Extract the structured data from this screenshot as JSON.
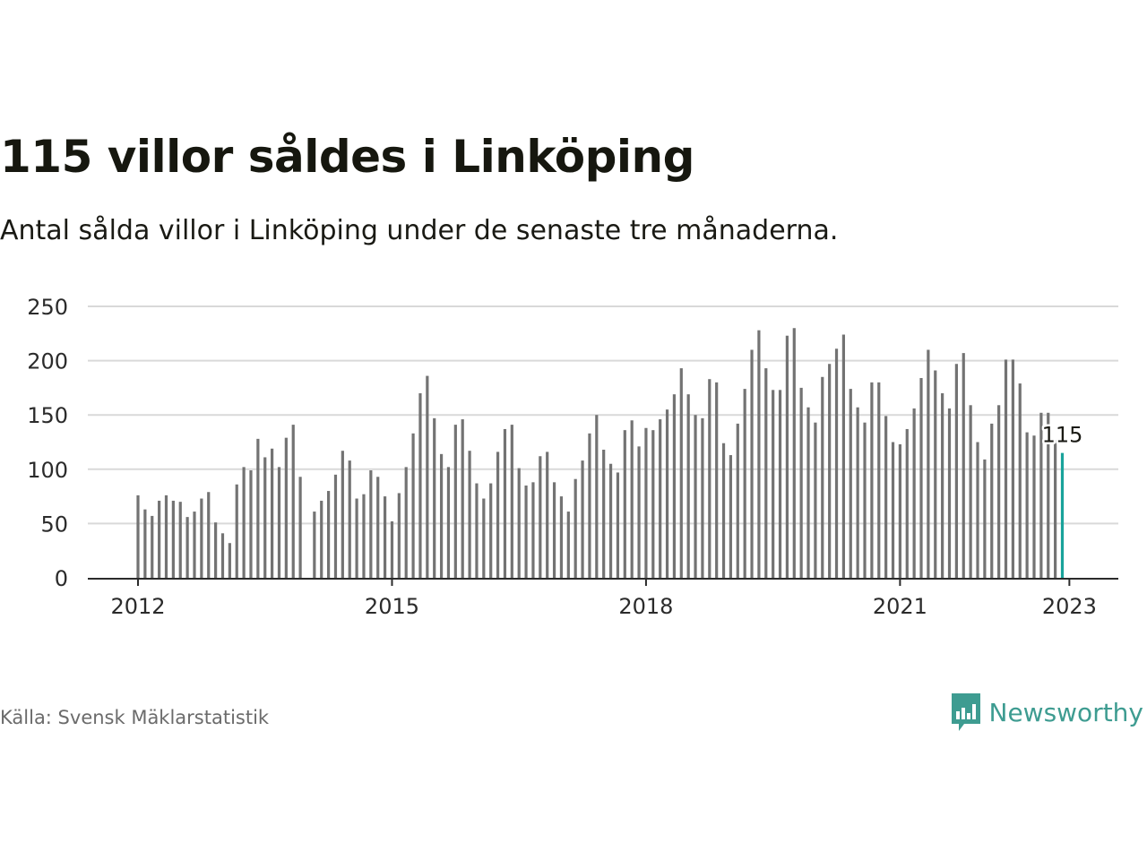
{
  "header": {
    "title": "115 villor såldes i Linköping",
    "subtitle": "Antal sålda villor i Linköping under de senaste tre månaderna."
  },
  "footer": {
    "source": "Källa: Svensk Mäklarstatistik",
    "brand": "Newsworthy"
  },
  "colors": {
    "bar": "#737373",
    "highlight": "#1aa39b",
    "grid": "#d9d9d9",
    "brand": "#3e9c91"
  },
  "chart_data": {
    "type": "bar",
    "title": "115 villor såldes i Linköping",
    "subtitle": "Antal sålda villor i Linköping under de senaste tre månaderna.",
    "xlabel": "",
    "ylabel": "",
    "ylim": [
      0,
      250
    ],
    "yticks": [
      0,
      50,
      100,
      150,
      200,
      250
    ],
    "xticks": [
      {
        "label": "2012",
        "index": 0
      },
      {
        "label": "2015",
        "index": 36
      },
      {
        "label": "2018",
        "index": 72
      },
      {
        "label": "2021",
        "index": 108
      },
      {
        "label": "2023",
        "index": 132
      }
    ],
    "grid": true,
    "legend": "none",
    "start": "2012-01",
    "frequency": "monthly",
    "values": [
      76,
      63,
      57,
      71,
      76,
      71,
      70,
      56,
      61,
      73,
      79,
      51,
      41,
      32,
      86,
      102,
      99,
      128,
      111,
      119,
      102,
      129,
      141,
      93,
      null,
      61,
      71,
      80,
      95,
      117,
      108,
      73,
      77,
      99,
      93,
      75,
      52,
      78,
      102,
      133,
      170,
      186,
      147,
      114,
      102,
      141,
      146,
      117,
      87,
      73,
      87,
      116,
      137,
      141,
      101,
      85,
      88,
      112,
      116,
      88,
      75,
      61,
      91,
      108,
      133,
      150,
      118,
      105,
      97,
      136,
      145,
      121,
      138,
      136,
      146,
      155,
      169,
      193,
      169,
      150,
      147,
      183,
      180,
      124,
      113,
      142,
      174,
      210,
      228,
      193,
      173,
      173,
      223,
      230,
      175,
      157,
      143,
      185,
      197,
      211,
      224,
      174,
      157,
      143,
      180,
      180,
      149,
      125,
      123,
      137,
      156,
      184,
      210,
      191,
      170,
      156,
      197,
      207,
      159,
      125,
      109,
      142,
      159,
      201,
      201,
      179,
      134,
      131,
      152,
      152,
      127,
      115
    ],
    "highlight": {
      "index": 131,
      "value": 115,
      "label": "115"
    }
  }
}
